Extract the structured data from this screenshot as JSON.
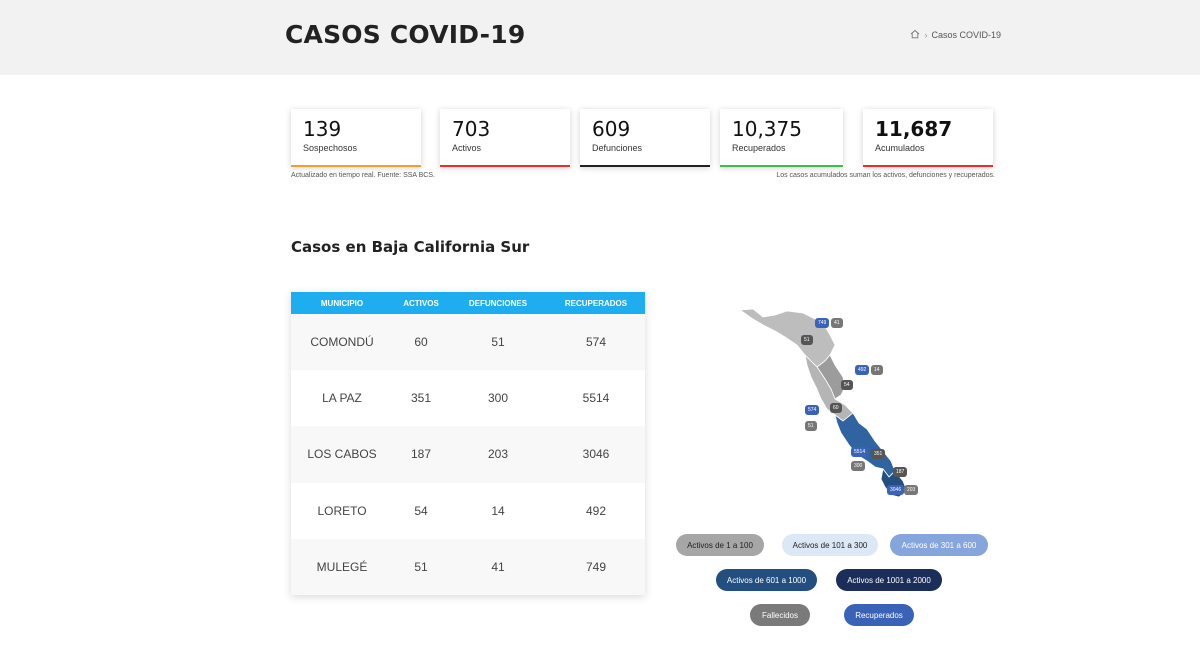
{
  "header": {
    "title": "CASOS COVID-19",
    "breadcrumb_current": "Casos COVID-19"
  },
  "stats": [
    {
      "value": "139",
      "label": "Sospechosos",
      "color": "#f0a030"
    },
    {
      "value": "703",
      "label": "Activos",
      "color": "#e53030"
    },
    {
      "value": "609",
      "label": "Defunciones",
      "color": "#222222"
    },
    {
      "value": "10,375",
      "label": "Recuperados",
      "color": "#3cbf4a"
    },
    {
      "value": "11,687",
      "label": "Acumulados",
      "color": "#e53030"
    }
  ],
  "notes": {
    "left": "Actualizado en tiempo real. Fuente: SSA BCS.",
    "right": "Los casos acumulados suman los activos, defunciones y recuperados."
  },
  "section_title": "Casos en Baja California Sur",
  "table": {
    "headers": [
      "MUNICIPIO",
      "ACTIVOS",
      "DEFUNCIONES",
      "RECUPERADOS"
    ],
    "rows": [
      [
        "COMONDÚ",
        "60",
        "51",
        "574"
      ],
      [
        "LA PAZ",
        "351",
        "300",
        "5514"
      ],
      [
        "LOS CABOS",
        "187",
        "203",
        "3046"
      ],
      [
        "LORETO",
        "54",
        "14",
        "492"
      ],
      [
        "MULEGÉ",
        "51",
        "41",
        "749"
      ]
    ]
  },
  "map_pins": {
    "mulege_rec": "749",
    "mulege_def": "41",
    "mulege_act": "51",
    "loreto_rec": "492",
    "loreto_def": "14",
    "loreto_act": "54",
    "comondu_rec": "574",
    "comondu_def": "51",
    "comondu_act": "60",
    "lapaz_rec": "5514",
    "lapaz_def": "300",
    "lapaz_act": "351",
    "loscabos_rec": "3046",
    "loscabos_def": "203",
    "loscabos_act": "187"
  },
  "legend": {
    "l1": "Activos de 1 a 100",
    "l2": "Activos de 101 a 300",
    "l3": "Activos de 301 a 600",
    "l4": "Activos de 601 a 1000",
    "l5": "Activos de 1001 a 2000",
    "l6": "Fallecidos",
    "l7": "Recuperados"
  },
  "colors": {
    "accent_blue": "#1eaef0",
    "recovered_pin": "#3a63b8",
    "deceased_pin": "#777777",
    "range1": "#a6a6a6",
    "range2": "#dce8f6",
    "range3": "#86a5dc",
    "range4": "#234f80",
    "range5": "#1b2e5a"
  }
}
